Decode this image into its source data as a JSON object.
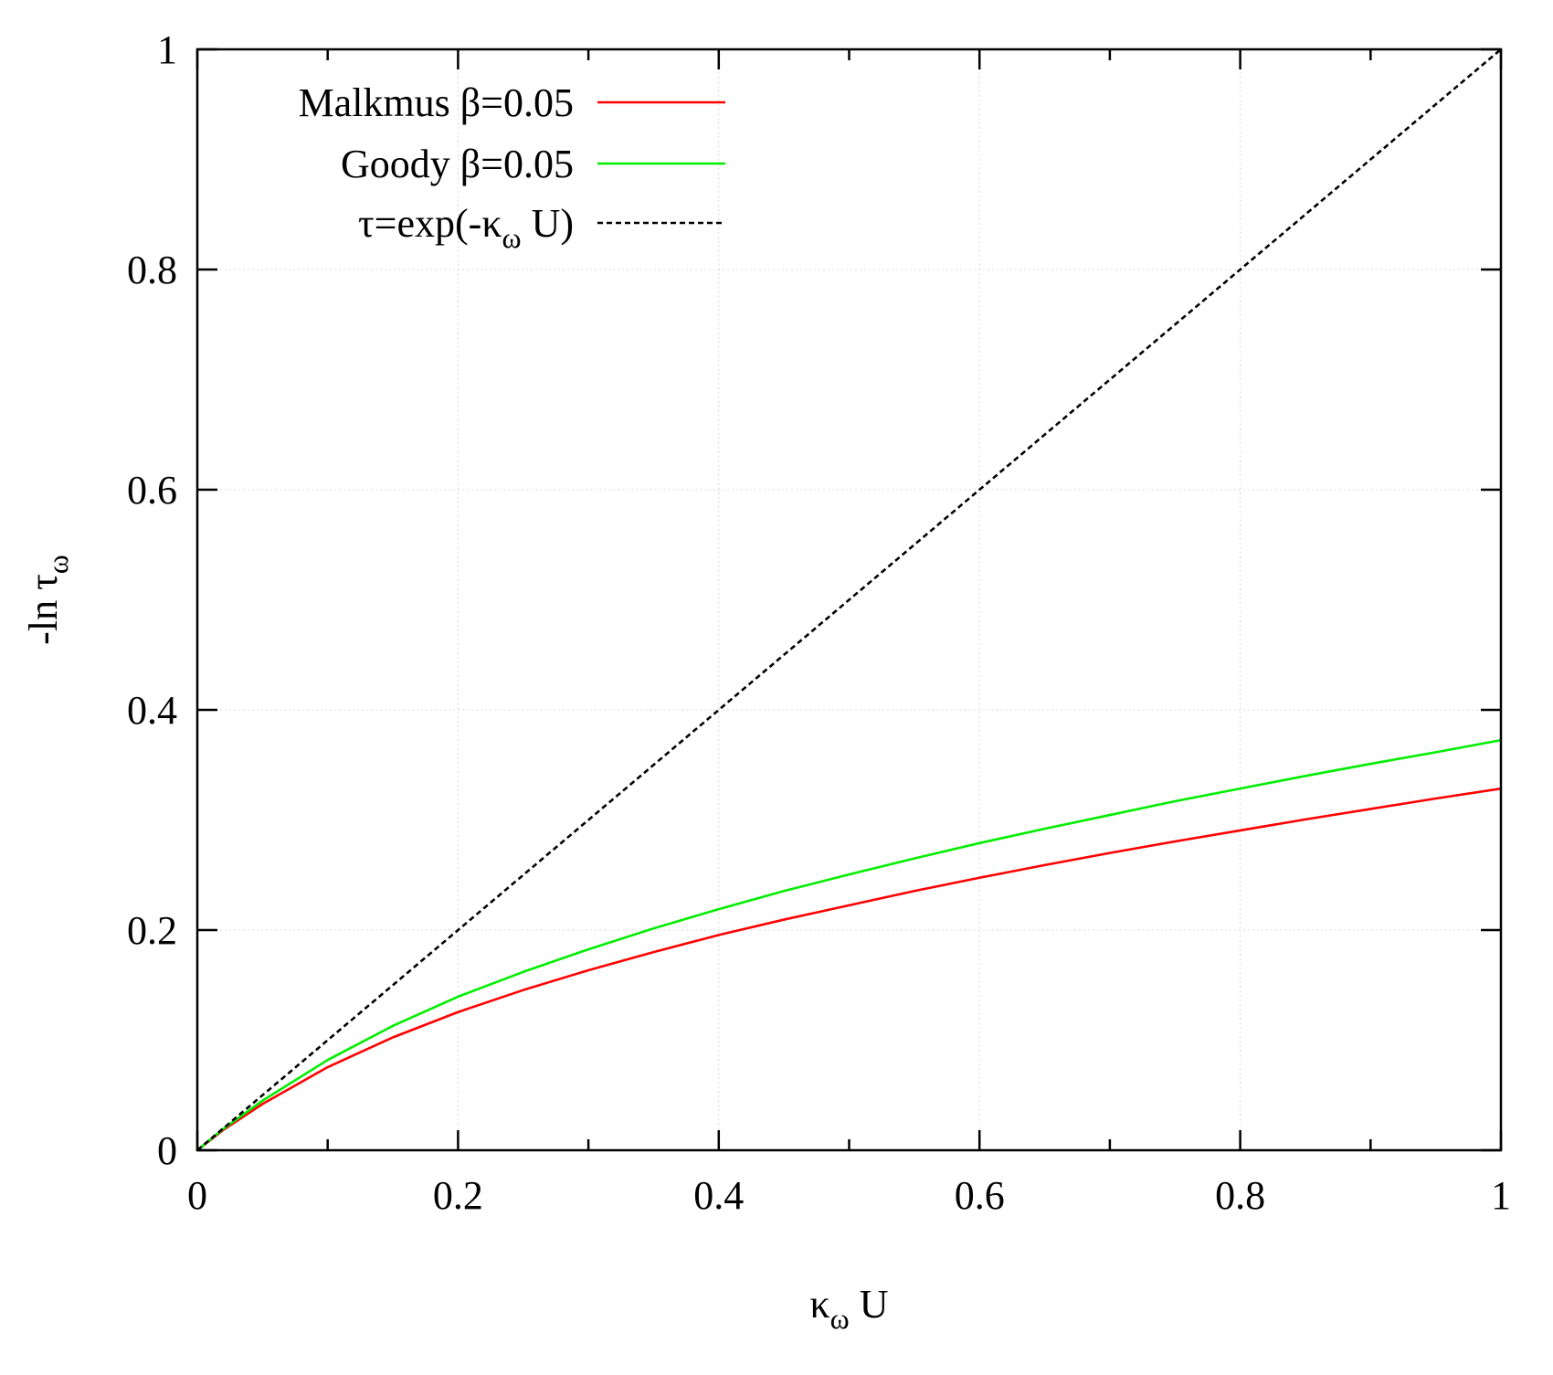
{
  "chart_data": {
    "type": "line",
    "title": "",
    "xlabel": "κω U",
    "ylabel": "-ln τω",
    "xlabel_parts": {
      "main": "κ",
      "sub": "ω",
      "rest": " U"
    },
    "ylabel_parts": {
      "main": "-ln τ",
      "sub": "ω"
    },
    "xlim": [
      0,
      1
    ],
    "ylim": [
      0,
      1
    ],
    "grid": true,
    "legend_position": "top-left",
    "x_ticks": [
      {
        "value": 0,
        "label": "0"
      },
      {
        "value": 0.2,
        "label": "0.2"
      },
      {
        "value": 0.4,
        "label": "0.4"
      },
      {
        "value": 0.6,
        "label": "0.6"
      },
      {
        "value": 0.8,
        "label": "0.8"
      },
      {
        "value": 1,
        "label": "1"
      }
    ],
    "x_minor_ticks": [
      0.1,
      0.3,
      0.5,
      0.7,
      0.9
    ],
    "y_ticks": [
      {
        "value": 0,
        "label": "0"
      },
      {
        "value": 0.2,
        "label": "0.2"
      },
      {
        "value": 0.4,
        "label": "0.4"
      },
      {
        "value": 0.6,
        "label": "0.6"
      },
      {
        "value": 0.8,
        "label": "0.8"
      },
      {
        "value": 1,
        "label": "1"
      }
    ],
    "series": [
      {
        "name": "Malkmus β=0.05",
        "legend_label": {
          "main": "Malkmus β=0.05",
          "sub": "",
          "rest": ""
        },
        "color": "#ff0000",
        "dash": "solid",
        "x": [
          0,
          0.02,
          0.05,
          0.1,
          0.15,
          0.2,
          0.25,
          0.3,
          0.35,
          0.4,
          0.45,
          0.5,
          0.55,
          0.6,
          0.65,
          0.7,
          0.75,
          0.8,
          0.85,
          0.9,
          0.95,
          1.0
        ],
        "y": [
          0,
          0.0185,
          0.042,
          0.0755,
          0.1025,
          0.1255,
          0.1455,
          0.1635,
          0.18,
          0.1955,
          0.2095,
          0.2225,
          0.2355,
          0.2475,
          0.259,
          0.27,
          0.2805,
          0.2905,
          0.3005,
          0.31,
          0.3195,
          0.3285
        ]
      },
      {
        "name": "Goody β=0.05",
        "legend_label": {
          "main": "Goody β=0.05",
          "sub": "",
          "rest": ""
        },
        "color": "#00ee00",
        "dash": "solid",
        "x": [
          0,
          0.02,
          0.05,
          0.1,
          0.15,
          0.2,
          0.25,
          0.3,
          0.35,
          0.4,
          0.45,
          0.5,
          0.55,
          0.6,
          0.65,
          0.7,
          0.75,
          0.8,
          0.85,
          0.9,
          0.95,
          1.0
        ],
        "y": [
          0,
          0.0195,
          0.045,
          0.082,
          0.113,
          0.1395,
          0.162,
          0.1825,
          0.2015,
          0.219,
          0.2355,
          0.2505,
          0.265,
          0.279,
          0.292,
          0.3045,
          0.317,
          0.3285,
          0.34,
          0.351,
          0.3615,
          0.3725
        ]
      },
      {
        "name": "τ=exp(-κω U)",
        "legend_label": {
          "main": "τ=exp(-κ",
          "sub": "ω",
          "rest": " U)"
        },
        "color": "#000000",
        "dash": "dashed",
        "x": [
          0,
          1
        ],
        "y": [
          0,
          1
        ]
      }
    ]
  }
}
